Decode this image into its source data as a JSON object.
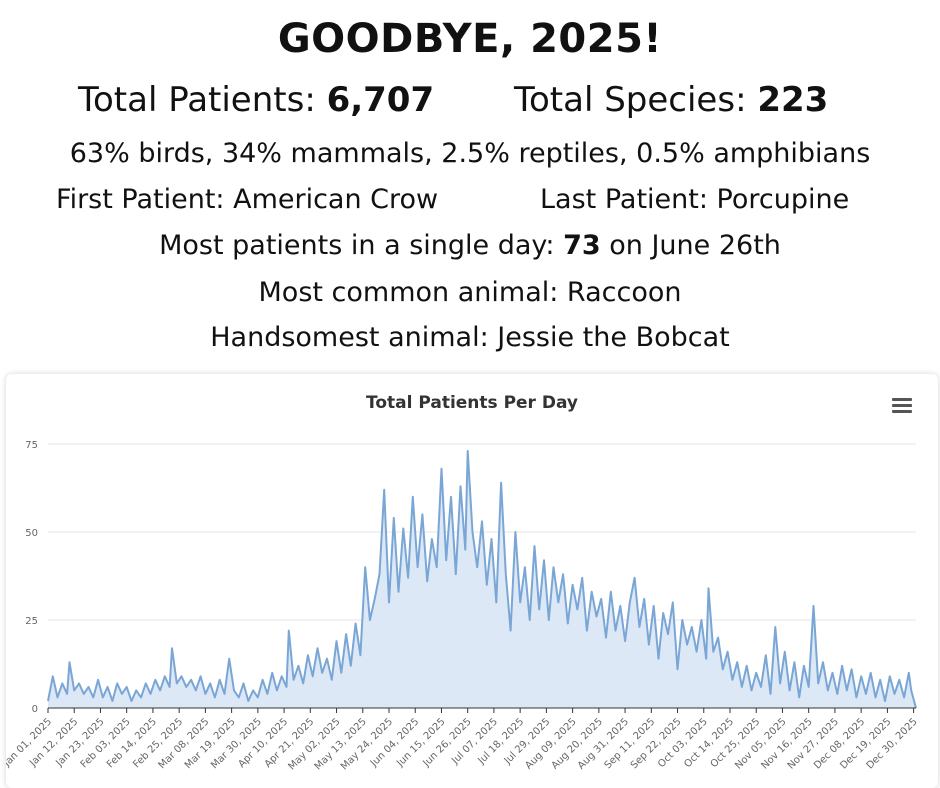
{
  "header": {
    "title": "GOODBYE, 2025!",
    "total_patients_label": "Total Patients: ",
    "total_patients_value": "6,707",
    "total_species_label": "Total Species: ",
    "total_species_value": "223",
    "breakdown": "63% birds, 34% mammals, 2.5% reptiles, 0.5% amphibians",
    "first_patient": "First Patient: American Crow",
    "last_patient": "Last Patient: Porcupine",
    "most_day_label": "Most patients in a single day: ",
    "most_day_value": "73",
    "most_day_suffix": " on June 26th",
    "most_common": "Most common animal: Raccoon",
    "handsomest": "Handsomest animal: Jessie the Bobcat"
  },
  "chart_data": {
    "type": "area",
    "title": "Total Patients Per Day",
    "xlabel": "",
    "ylabel": "",
    "ylim": [
      0,
      75
    ],
    "y_ticks": [
      0,
      25,
      50,
      75
    ],
    "x_tick_labels": [
      "Jan 01, 2025",
      "Jan 12, 2025",
      "Jan 23, 2025",
      "Feb 03, 2025",
      "Feb 14, 2025",
      "Feb 25, 2025",
      "Mar 08, 2025",
      "Mar 19, 2025",
      "Mar 30, 2025",
      "Apr 10, 2025",
      "Apr 21, 2025",
      "May 02, 2025",
      "May 13, 2025",
      "May 24, 2025",
      "Jun 04, 2025",
      "Jun 15, 2025",
      "Jun 26, 2025",
      "Jul 07, 2025",
      "Jul 18, 2025",
      "Jul 29, 2025",
      "Aug 09, 2025",
      "Aug 20, 2025",
      "Aug 31, 2025",
      "Sep 11, 2025",
      "Sep 22, 2025",
      "Oct 03, 2025",
      "Oct 14, 2025",
      "Oct 25, 2025",
      "Nov 05, 2025",
      "Nov 16, 2025",
      "Nov 27, 2025",
      "Dec 08, 2025",
      "Dec 19, 2025",
      "Dec 30, 2025"
    ],
    "grid": true,
    "legend": "none",
    "series": [
      {
        "color": "#7aa6d6",
        "fill": "#dce8f5",
        "points": [
          {
            "x": "Jan 01, 2025",
            "y": 2
          },
          {
            "x": "Jan 03, 2025",
            "y": 9
          },
          {
            "x": "Jan 05, 2025",
            "y": 3
          },
          {
            "x": "Jan 07, 2025",
            "y": 7
          },
          {
            "x": "Jan 09, 2025",
            "y": 4
          },
          {
            "x": "Jan 10, 2025",
            "y": 13
          },
          {
            "x": "Jan 12, 2025",
            "y": 5
          },
          {
            "x": "Jan 14, 2025",
            "y": 7
          },
          {
            "x": "Jan 16, 2025",
            "y": 4
          },
          {
            "x": "Jan 18, 2025",
            "y": 6
          },
          {
            "x": "Jan 20, 2025",
            "y": 3
          },
          {
            "x": "Jan 22, 2025",
            "y": 8
          },
          {
            "x": "Jan 24, 2025",
            "y": 3
          },
          {
            "x": "Jan 26, 2025",
            "y": 6
          },
          {
            "x": "Jan 28, 2025",
            "y": 2
          },
          {
            "x": "Jan 30, 2025",
            "y": 7
          },
          {
            "x": "Feb 01, 2025",
            "y": 4
          },
          {
            "x": "Feb 03, 2025",
            "y": 6
          },
          {
            "x": "Feb 05, 2025",
            "y": 2
          },
          {
            "x": "Feb 07, 2025",
            "y": 5
          },
          {
            "x": "Feb 09, 2025",
            "y": 3
          },
          {
            "x": "Feb 11, 2025",
            "y": 7
          },
          {
            "x": "Feb 13, 2025",
            "y": 4
          },
          {
            "x": "Feb 15, 2025",
            "y": 8
          },
          {
            "x": "Feb 17, 2025",
            "y": 5
          },
          {
            "x": "Feb 19, 2025",
            "y": 9
          },
          {
            "x": "Feb 21, 2025",
            "y": 6
          },
          {
            "x": "Feb 22, 2025",
            "y": 17
          },
          {
            "x": "Feb 24, 2025",
            "y": 7
          },
          {
            "x": "Feb 26, 2025",
            "y": 9
          },
          {
            "x": "Feb 28, 2025",
            "y": 6
          },
          {
            "x": "Mar 02, 2025",
            "y": 8
          },
          {
            "x": "Mar 04, 2025",
            "y": 5
          },
          {
            "x": "Mar 06, 2025",
            "y": 9
          },
          {
            "x": "Mar 08, 2025",
            "y": 4
          },
          {
            "x": "Mar 10, 2025",
            "y": 7
          },
          {
            "x": "Mar 12, 2025",
            "y": 3
          },
          {
            "x": "Mar 14, 2025",
            "y": 8
          },
          {
            "x": "Mar 16, 2025",
            "y": 4
          },
          {
            "x": "Mar 18, 2025",
            "y": 14
          },
          {
            "x": "Mar 20, 2025",
            "y": 5
          },
          {
            "x": "Mar 22, 2025",
            "y": 3
          },
          {
            "x": "Mar 24, 2025",
            "y": 7
          },
          {
            "x": "Mar 26, 2025",
            "y": 2
          },
          {
            "x": "Mar 28, 2025",
            "y": 5
          },
          {
            "x": "Mar 30, 2025",
            "y": 3
          },
          {
            "x": "Apr 01, 2025",
            "y": 8
          },
          {
            "x": "Apr 03, 2025",
            "y": 4
          },
          {
            "x": "Apr 05, 2025",
            "y": 10
          },
          {
            "x": "Apr 07, 2025",
            "y": 5
          },
          {
            "x": "Apr 09, 2025",
            "y": 9
          },
          {
            "x": "Apr 11, 2025",
            "y": 6
          },
          {
            "x": "Apr 12, 2025",
            "y": 22
          },
          {
            "x": "Apr 14, 2025",
            "y": 8
          },
          {
            "x": "Apr 16, 2025",
            "y": 12
          },
          {
            "x": "Apr 18, 2025",
            "y": 7
          },
          {
            "x": "Apr 20, 2025",
            "y": 15
          },
          {
            "x": "Apr 22, 2025",
            "y": 9
          },
          {
            "x": "Apr 24, 2025",
            "y": 17
          },
          {
            "x": "Apr 26, 2025",
            "y": 10
          },
          {
            "x": "Apr 28, 2025",
            "y": 14
          },
          {
            "x": "Apr 30, 2025",
            "y": 8
          },
          {
            "x": "May 02, 2025",
            "y": 19
          },
          {
            "x": "May 04, 2025",
            "y": 10
          },
          {
            "x": "May 06, 2025",
            "y": 21
          },
          {
            "x": "May 08, 2025",
            "y": 12
          },
          {
            "x": "May 10, 2025",
            "y": 24
          },
          {
            "x": "May 12, 2025",
            "y": 15
          },
          {
            "x": "May 14, 2025",
            "y": 40
          },
          {
            "x": "May 16, 2025",
            "y": 25
          },
          {
            "x": "May 18, 2025",
            "y": 31
          },
          {
            "x": "May 20, 2025",
            "y": 38
          },
          {
            "x": "May 22, 2025",
            "y": 62
          },
          {
            "x": "May 24, 2025",
            "y": 30
          },
          {
            "x": "May 26, 2025",
            "y": 54
          },
          {
            "x": "May 28, 2025",
            "y": 33
          },
          {
            "x": "May 30, 2025",
            "y": 51
          },
          {
            "x": "Jun 01, 2025",
            "y": 37
          },
          {
            "x": "Jun 03, 2025",
            "y": 60
          },
          {
            "x": "Jun 05, 2025",
            "y": 40
          },
          {
            "x": "Jun 07, 2025",
            "y": 55
          },
          {
            "x": "Jun 09, 2025",
            "y": 36
          },
          {
            "x": "Jun 11, 2025",
            "y": 48
          },
          {
            "x": "Jun 13, 2025",
            "y": 40
          },
          {
            "x": "Jun 15, 2025",
            "y": 68
          },
          {
            "x": "Jun 17, 2025",
            "y": 42
          },
          {
            "x": "Jun 19, 2025",
            "y": 60
          },
          {
            "x": "Jun 21, 2025",
            "y": 38
          },
          {
            "x": "Jun 23, 2025",
            "y": 63
          },
          {
            "x": "Jun 25, 2025",
            "y": 45
          },
          {
            "x": "Jun 26, 2025",
            "y": 73
          },
          {
            "x": "Jun 28, 2025",
            "y": 50
          },
          {
            "x": "Jun 30, 2025",
            "y": 40
          },
          {
            "x": "Jul 02, 2025",
            "y": 53
          },
          {
            "x": "Jul 04, 2025",
            "y": 35
          },
          {
            "x": "Jul 06, 2025",
            "y": 48
          },
          {
            "x": "Jul 08, 2025",
            "y": 30
          },
          {
            "x": "Jul 10, 2025",
            "y": 64
          },
          {
            "x": "Jul 12, 2025",
            "y": 38
          },
          {
            "x": "Jul 14, 2025",
            "y": 22
          },
          {
            "x": "Jul 16, 2025",
            "y": 50
          },
          {
            "x": "Jul 18, 2025",
            "y": 30
          },
          {
            "x": "Jul 20, 2025",
            "y": 40
          },
          {
            "x": "Jul 22, 2025",
            "y": 25
          },
          {
            "x": "Jul 24, 2025",
            "y": 46
          },
          {
            "x": "Jul 26, 2025",
            "y": 28
          },
          {
            "x": "Jul 28, 2025",
            "y": 42
          },
          {
            "x": "Jul 30, 2025",
            "y": 25
          },
          {
            "x": "Aug 01, 2025",
            "y": 40
          },
          {
            "x": "Aug 03, 2025",
            "y": 30
          },
          {
            "x": "Aug 05, 2025",
            "y": 38
          },
          {
            "x": "Aug 07, 2025",
            "y": 24
          },
          {
            "x": "Aug 09, 2025",
            "y": 35
          },
          {
            "x": "Aug 11, 2025",
            "y": 28
          },
          {
            "x": "Aug 13, 2025",
            "y": 37
          },
          {
            "x": "Aug 15, 2025",
            "y": 22
          },
          {
            "x": "Aug 17, 2025",
            "y": 33
          },
          {
            "x": "Aug 19, 2025",
            "y": 26
          },
          {
            "x": "Aug 21, 2025",
            "y": 31
          },
          {
            "x": "Aug 23, 2025",
            "y": 20
          },
          {
            "x": "Aug 25, 2025",
            "y": 33
          },
          {
            "x": "Aug 27, 2025",
            "y": 22
          },
          {
            "x": "Aug 29, 2025",
            "y": 29
          },
          {
            "x": "Aug 31, 2025",
            "y": 19
          },
          {
            "x": "Sep 02, 2025",
            "y": 30
          },
          {
            "x": "Sep 04, 2025",
            "y": 37
          },
          {
            "x": "Sep 06, 2025",
            "y": 23
          },
          {
            "x": "Sep 08, 2025",
            "y": 31
          },
          {
            "x": "Sep 10, 2025",
            "y": 18
          },
          {
            "x": "Sep 12, 2025",
            "y": 29
          },
          {
            "x": "Sep 14, 2025",
            "y": 14
          },
          {
            "x": "Sep 16, 2025",
            "y": 27
          },
          {
            "x": "Sep 18, 2025",
            "y": 21
          },
          {
            "x": "Sep 20, 2025",
            "y": 30
          },
          {
            "x": "Sep 22, 2025",
            "y": 11
          },
          {
            "x": "Sep 24, 2025",
            "y": 25
          },
          {
            "x": "Sep 26, 2025",
            "y": 18
          },
          {
            "x": "Sep 28, 2025",
            "y": 23
          },
          {
            "x": "Sep 30, 2025",
            "y": 16
          },
          {
            "x": "Oct 02, 2025",
            "y": 25
          },
          {
            "x": "Oct 04, 2025",
            "y": 14
          },
          {
            "x": "Oct 05, 2025",
            "y": 34
          },
          {
            "x": "Oct 07, 2025",
            "y": 16
          },
          {
            "x": "Oct 09, 2025",
            "y": 20
          },
          {
            "x": "Oct 11, 2025",
            "y": 11
          },
          {
            "x": "Oct 13, 2025",
            "y": 16
          },
          {
            "x": "Oct 15, 2025",
            "y": 8
          },
          {
            "x": "Oct 17, 2025",
            "y": 13
          },
          {
            "x": "Oct 19, 2025",
            "y": 6
          },
          {
            "x": "Oct 21, 2025",
            "y": 12
          },
          {
            "x": "Oct 23, 2025",
            "y": 5
          },
          {
            "x": "Oct 25, 2025",
            "y": 10
          },
          {
            "x": "Oct 27, 2025",
            "y": 6
          },
          {
            "x": "Oct 29, 2025",
            "y": 15
          },
          {
            "x": "Oct 31, 2025",
            "y": 4
          },
          {
            "x": "Nov 02, 2025",
            "y": 23
          },
          {
            "x": "Nov 04, 2025",
            "y": 7
          },
          {
            "x": "Nov 06, 2025",
            "y": 16
          },
          {
            "x": "Nov 08, 2025",
            "y": 5
          },
          {
            "x": "Nov 10, 2025",
            "y": 13
          },
          {
            "x": "Nov 12, 2025",
            "y": 3
          },
          {
            "x": "Nov 14, 2025",
            "y": 12
          },
          {
            "x": "Nov 16, 2025",
            "y": 6
          },
          {
            "x": "Nov 18, 2025",
            "y": 29
          },
          {
            "x": "Nov 20, 2025",
            "y": 7
          },
          {
            "x": "Nov 22, 2025",
            "y": 13
          },
          {
            "x": "Nov 24, 2025",
            "y": 5
          },
          {
            "x": "Nov 26, 2025",
            "y": 10
          },
          {
            "x": "Nov 28, 2025",
            "y": 4
          },
          {
            "x": "Nov 30, 2025",
            "y": 12
          },
          {
            "x": "Dec 02, 2025",
            "y": 5
          },
          {
            "x": "Dec 04, 2025",
            "y": 11
          },
          {
            "x": "Dec 06, 2025",
            "y": 3
          },
          {
            "x": "Dec 08, 2025",
            "y": 9
          },
          {
            "x": "Dec 10, 2025",
            "y": 4
          },
          {
            "x": "Dec 12, 2025",
            "y": 10
          },
          {
            "x": "Dec 14, 2025",
            "y": 3
          },
          {
            "x": "Dec 16, 2025",
            "y": 8
          },
          {
            "x": "Dec 18, 2025",
            "y": 2
          },
          {
            "x": "Dec 20, 2025",
            "y": 9
          },
          {
            "x": "Dec 22, 2025",
            "y": 4
          },
          {
            "x": "Dec 24, 2025",
            "y": 8
          },
          {
            "x": "Dec 26, 2025",
            "y": 3
          },
          {
            "x": "Dec 28, 2025",
            "y": 10
          },
          {
            "x": "Dec 29, 2025",
            "y": 5
          },
          {
            "x": "Dec 31, 2025",
            "y": 0
          }
        ]
      }
    ]
  }
}
